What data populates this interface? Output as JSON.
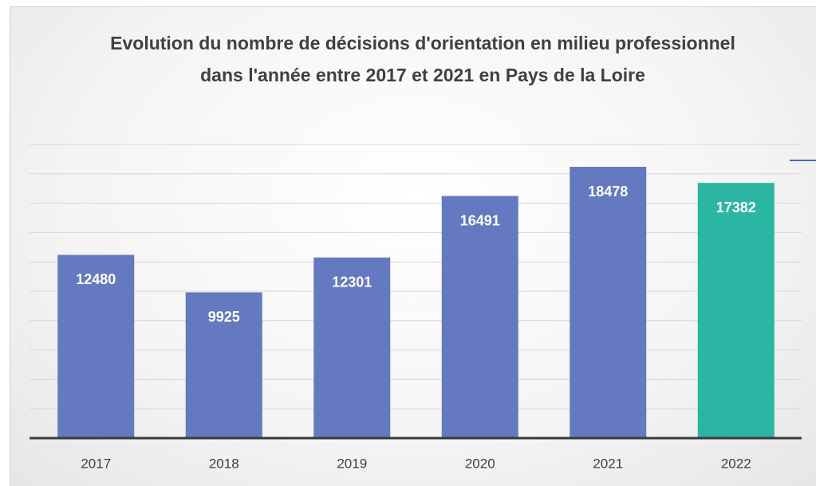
{
  "chart_data": {
    "type": "bar",
    "title": "Evolution du nombre de décisions d'orientation en milieu professionnel dans l'année entre 2017 et 2021 en Pays de la Loire",
    "categories": [
      "2017",
      "2018",
      "2019",
      "2020",
      "2021",
      "2022"
    ],
    "values": [
      12480,
      9925,
      12301,
      16491,
      18478,
      17382
    ],
    "colors": [
      "#6479bf",
      "#6479bf",
      "#6479bf",
      "#6479bf",
      "#6479bf",
      "#2bb5a3"
    ],
    "ylim": [
      0,
      20000
    ],
    "yticks": [
      0,
      2000,
      4000,
      6000,
      8000,
      10000,
      12000,
      14000,
      16000,
      18000,
      20000
    ],
    "grid": true
  }
}
